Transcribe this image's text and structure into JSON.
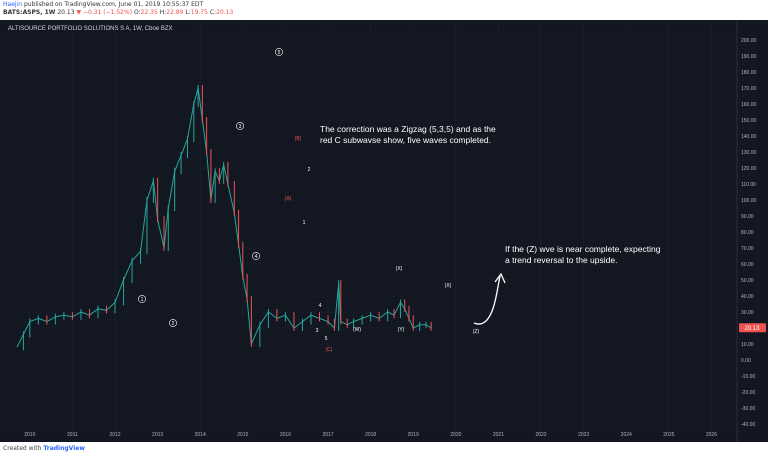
{
  "header": {
    "author": "Haejin",
    "published_text": "published on TradingView.com, June 01, 2019 10:55:37 EDT",
    "symbol": "BATS:ASPS, 1W",
    "last": "20.13",
    "change": "▼ −0.31 (−1.52%)",
    "ohlc_labels": {
      "o": "O:",
      "h": "H:",
      "l": "L:",
      "c": "C:"
    },
    "ohlc": {
      "o": "22.35",
      "h": "22.89",
      "l": "19.75",
      "c": "20.13"
    }
  },
  "footer": {
    "created_with": "Created with",
    "brand": "TradingView"
  },
  "colors": {
    "background": "#131722",
    "up": "#26a69a",
    "down": "#ef5350",
    "price_tag": "#ef5350",
    "text": "#d1d4dc"
  },
  "chart_data": {
    "type": "line",
    "title": "ALTISOURCE PORTFOLIO SOLUTIONS S A, 1W, Cboe BZX",
    "x_ticks": [
      "2010",
      "2011",
      "2012",
      "2013",
      "2014",
      "2015",
      "2016",
      "2017",
      "2018",
      "2019",
      "2020",
      "2021",
      "2022",
      "2023",
      "2024",
      "2025",
      "2026"
    ],
    "y_ticks": [
      200,
      190,
      180,
      170,
      160,
      150,
      140,
      130,
      120,
      110,
      100,
      90,
      80,
      70,
      60,
      50,
      40,
      30,
      20,
      10,
      0,
      -10,
      -20,
      -30,
      -40
    ],
    "xlim": [
      2009.3,
      2026.6
    ],
    "ylim": [
      -45,
      205
    ],
    "grid": true,
    "last_price_label": "20.13",
    "series": [
      {
        "x": [
          2009.7,
          2009.85,
          2010.0,
          2010.2,
          2010.4,
          2010.6,
          2010.8,
          2011.0,
          2011.2,
          2011.4,
          2011.6,
          2011.8,
          2012.0,
          2012.2,
          2012.4,
          2012.6,
          2012.75,
          2012.9,
          2013.0,
          2013.15,
          2013.25,
          2013.4,
          2013.55,
          2013.7,
          2013.85,
          2013.95,
          2014.05,
          2014.15,
          2014.25,
          2014.35,
          2014.45,
          2014.55,
          2014.65,
          2014.8,
          2014.9,
          2015.0,
          2015.1,
          2015.2,
          2015.4,
          2015.6,
          2015.8,
          2016.0,
          2016.2,
          2016.4,
          2016.6,
          2016.8,
          2017.0,
          2017.15,
          2017.25,
          2017.3,
          2017.45,
          2017.6,
          2017.8,
          2018.0,
          2018.2,
          2018.4,
          2018.55,
          2018.7,
          2018.8,
          2018.9,
          2019.0,
          2019.15,
          2019.3,
          2019.42
        ],
        "y": [
          8,
          16,
          24,
          26,
          24,
          27,
          28,
          27,
          30,
          28,
          32,
          31,
          36,
          50,
          62,
          68,
          100,
          112,
          88,
          70,
          95,
          118,
          128,
          138,
          160,
          170,
          150,
          130,
          100,
          118,
          112,
          122,
          110,
          92,
          72,
          52,
          38,
          10,
          22,
          30,
          26,
          28,
          20,
          24,
          28,
          26,
          24,
          20,
          48,
          24,
          22,
          24,
          26,
          28,
          26,
          30,
          28,
          36,
          32,
          26,
          20,
          22,
          22,
          20.13
        ]
      }
    ],
    "wave_labels": {
      "circled": [
        "1",
        "2",
        "3",
        "4",
        "5"
      ],
      "red": [
        "(A)",
        "(B)",
        "(C)"
      ],
      "white": [
        "1",
        "2",
        "3",
        "4",
        "5",
        "(W)",
        "(X)",
        "(Y)",
        "(X)",
        "(Z)"
      ]
    },
    "annotations": [
      "The correction was a Zigzag (5,3,5) and as the",
      "red C subwavse show, five waves completed.",
      "If the (Z) wve is near complete, expecting",
      "a trend reversal to the upside."
    ]
  }
}
